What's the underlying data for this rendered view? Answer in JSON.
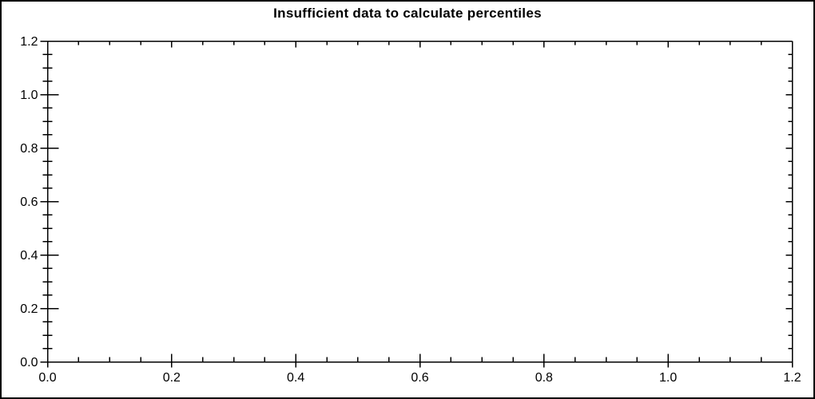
{
  "chart_data": {
    "type": "scatter",
    "title": "Insufficient data to calculate percentiles",
    "series": [],
    "xlabel": "",
    "ylabel": "",
    "xlim": [
      0.0,
      1.2
    ],
    "ylim": [
      0.0,
      1.2
    ],
    "x_tick_values": [
      0.0,
      0.2,
      0.4,
      0.6,
      0.8,
      1.0,
      1.2
    ],
    "x_tick_labels": [
      "0.0",
      "0.2",
      "0.4",
      "0.6",
      "0.8",
      "1.0",
      "1.2"
    ],
    "y_tick_values": [
      0.0,
      0.2,
      0.4,
      0.6,
      0.8,
      1.0,
      1.2
    ],
    "y_tick_labels": [
      "0.0",
      "0.2",
      "0.4",
      "0.6",
      "0.8",
      "1.0",
      "1.2"
    ],
    "minor_tick_interval": 0.05,
    "grid": false,
    "legend": null
  },
  "colors": {
    "axis": "#000000",
    "text": "#000000",
    "background": "#ffffff"
  }
}
